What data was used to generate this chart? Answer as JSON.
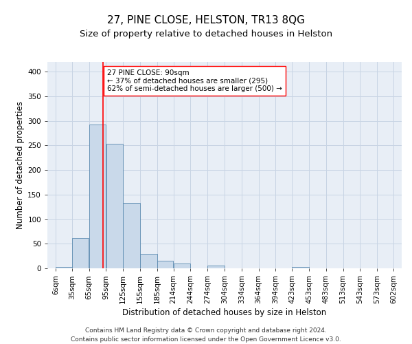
{
  "title": "27, PINE CLOSE, HELSTON, TR13 8QG",
  "subtitle": "Size of property relative to detached houses in Helston",
  "xlabel": "Distribution of detached houses by size in Helston",
  "ylabel": "Number of detached properties",
  "footnote1": "Contains HM Land Registry data © Crown copyright and database right 2024.",
  "footnote2": "Contains public sector information licensed under the Open Government Licence v3.0.",
  "bins": [
    6,
    35,
    65,
    95,
    125,
    155,
    185,
    214,
    244,
    274,
    304,
    334,
    364,
    394,
    423,
    453,
    483,
    513,
    543,
    573,
    602
  ],
  "bar_labels": [
    "6sqm",
    "35sqm",
    "65sqm",
    "95sqm",
    "125sqm",
    "155sqm",
    "185sqm",
    "214sqm",
    "244sqm",
    "274sqm",
    "304sqm",
    "334sqm",
    "364sqm",
    "394sqm",
    "423sqm",
    "453sqm",
    "483sqm",
    "513sqm",
    "543sqm",
    "573sqm",
    "602sqm"
  ],
  "values": [
    3,
    62,
    293,
    254,
    133,
    29,
    15,
    10,
    0,
    5,
    0,
    0,
    0,
    0,
    3,
    0,
    0,
    0,
    0,
    0
  ],
  "bar_color": "#c9d9ea",
  "bar_edge_color": "#5b8ab0",
  "vline_x": 90,
  "vline_color": "red",
  "annotation_text": "27 PINE CLOSE: 90sqm\n← 37% of detached houses are smaller (295)\n62% of semi-detached houses are larger (500) →",
  "ylim": [
    0,
    420
  ],
  "yticks": [
    0,
    50,
    100,
    150,
    200,
    250,
    300,
    350,
    400
  ],
  "grid_color": "#c8d4e4",
  "bg_color": "#e8eef6",
  "title_fontsize": 11,
  "subtitle_fontsize": 9.5,
  "axis_label_fontsize": 8.5,
  "tick_fontsize": 7.5,
  "annotation_fontsize": 7.5,
  "footnote_fontsize": 6.5
}
